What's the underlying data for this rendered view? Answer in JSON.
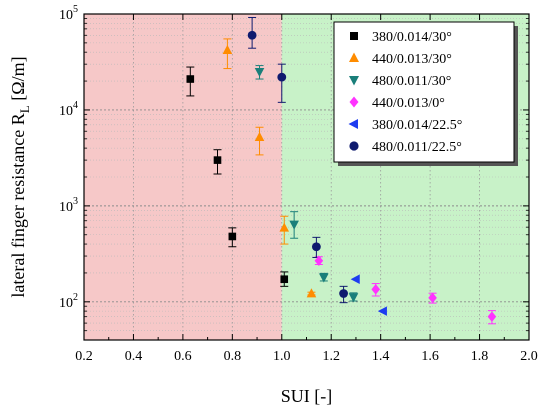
{
  "chart_data": {
    "type": "scatter",
    "xlabel": "SUI [-]",
    "ylabel": "lateral finger resistance R",
    "ylabel_sub": "L",
    "ylabel_unit": " [Ω/m]",
    "xlim": [
      0.2,
      2.0
    ],
    "ylim": [
      40,
      100000
    ],
    "y_scale": "log",
    "x_ticks": [
      "0.2",
      "0.4",
      "0.6",
      "0.8",
      "1.0",
      "1.2",
      "1.4",
      "1.6",
      "1.8",
      "2.0"
    ],
    "y_ticks": [
      {
        "value": 100,
        "base": "10",
        "exp": "2"
      },
      {
        "value": 1000,
        "base": "10",
        "exp": "3"
      },
      {
        "value": 10000,
        "base": "10",
        "exp": "4"
      },
      {
        "value": 100000,
        "base": "10",
        "exp": "5"
      }
    ],
    "grid": true,
    "regions": [
      {
        "x": [
          0.2,
          1.0
        ],
        "color": "#f6c8c8"
      },
      {
        "x": [
          1.0,
          2.0
        ],
        "color": "#c8f2c8"
      }
    ],
    "legend_placement": "top-right",
    "series": [
      {
        "name": "380/0.014/30°",
        "marker": "square",
        "color": "#000000",
        "points": [
          {
            "x": 0.63,
            "y": 21000,
            "lo": 14000,
            "hi": 28000
          },
          {
            "x": 0.74,
            "y": 3000,
            "lo": 2150,
            "hi": 3850
          },
          {
            "x": 0.8,
            "y": 480,
            "lo": 375,
            "hi": 590
          },
          {
            "x": 1.01,
            "y": 172,
            "lo": 145,
            "hi": 205
          }
        ]
      },
      {
        "name": "440/0.013/30°",
        "marker": "triangle-up",
        "color": "#ff8c00",
        "points": [
          {
            "x": 0.78,
            "y": 42000,
            "lo": 27000,
            "hi": 55000
          },
          {
            "x": 0.91,
            "y": 5200,
            "lo": 3400,
            "hi": 6600
          },
          {
            "x": 1.01,
            "y": 590,
            "lo": 400,
            "hi": 780
          },
          {
            "x": 1.12,
            "y": 122,
            "lo": 118,
            "hi": 126
          }
        ]
      },
      {
        "name": "480/0.011/30°",
        "marker": "triangle-down",
        "color": "#1a7f7a",
        "points": [
          {
            "x": 0.91,
            "y": 25000,
            "lo": 21000,
            "hi": 29000
          },
          {
            "x": 1.05,
            "y": 640,
            "lo": 460,
            "hi": 870
          },
          {
            "x": 1.17,
            "y": 180,
            "lo": 165,
            "hi": 198
          },
          {
            "x": 1.29,
            "y": 112,
            "lo": 102,
            "hi": 124
          }
        ]
      },
      {
        "name": "440/0.013/0°",
        "marker": "diamond",
        "color": "#ff33ff",
        "points": [
          {
            "x": 1.15,
            "y": 268,
            "lo": 245,
            "hi": 295
          },
          {
            "x": 1.38,
            "y": 135,
            "lo": 115,
            "hi": 155
          },
          {
            "x": 1.61,
            "y": 110,
            "lo": 97,
            "hi": 123
          },
          {
            "x": 1.85,
            "y": 70,
            "lo": 59,
            "hi": 81
          }
        ]
      },
      {
        "name": "380/0.014/22.5°",
        "marker": "triangle-left",
        "color": "#1e3cf0",
        "points": [
          {
            "x": 1.3,
            "y": 172,
            "lo": 172,
            "hi": 172
          },
          {
            "x": 1.41,
            "y": 80,
            "lo": 80,
            "hi": 80
          }
        ]
      },
      {
        "name": "480/0.011/22.5°",
        "marker": "circle",
        "color": "#0f1a6e",
        "points": [
          {
            "x": 0.88,
            "y": 60000,
            "lo": 44000,
            "hi": 92000
          },
          {
            "x": 1.0,
            "y": 22000,
            "lo": 12000,
            "hi": 30000
          },
          {
            "x": 1.14,
            "y": 375,
            "lo": 290,
            "hi": 470
          },
          {
            "x": 1.25,
            "y": 122,
            "lo": 98,
            "hi": 145
          }
        ]
      }
    ]
  }
}
